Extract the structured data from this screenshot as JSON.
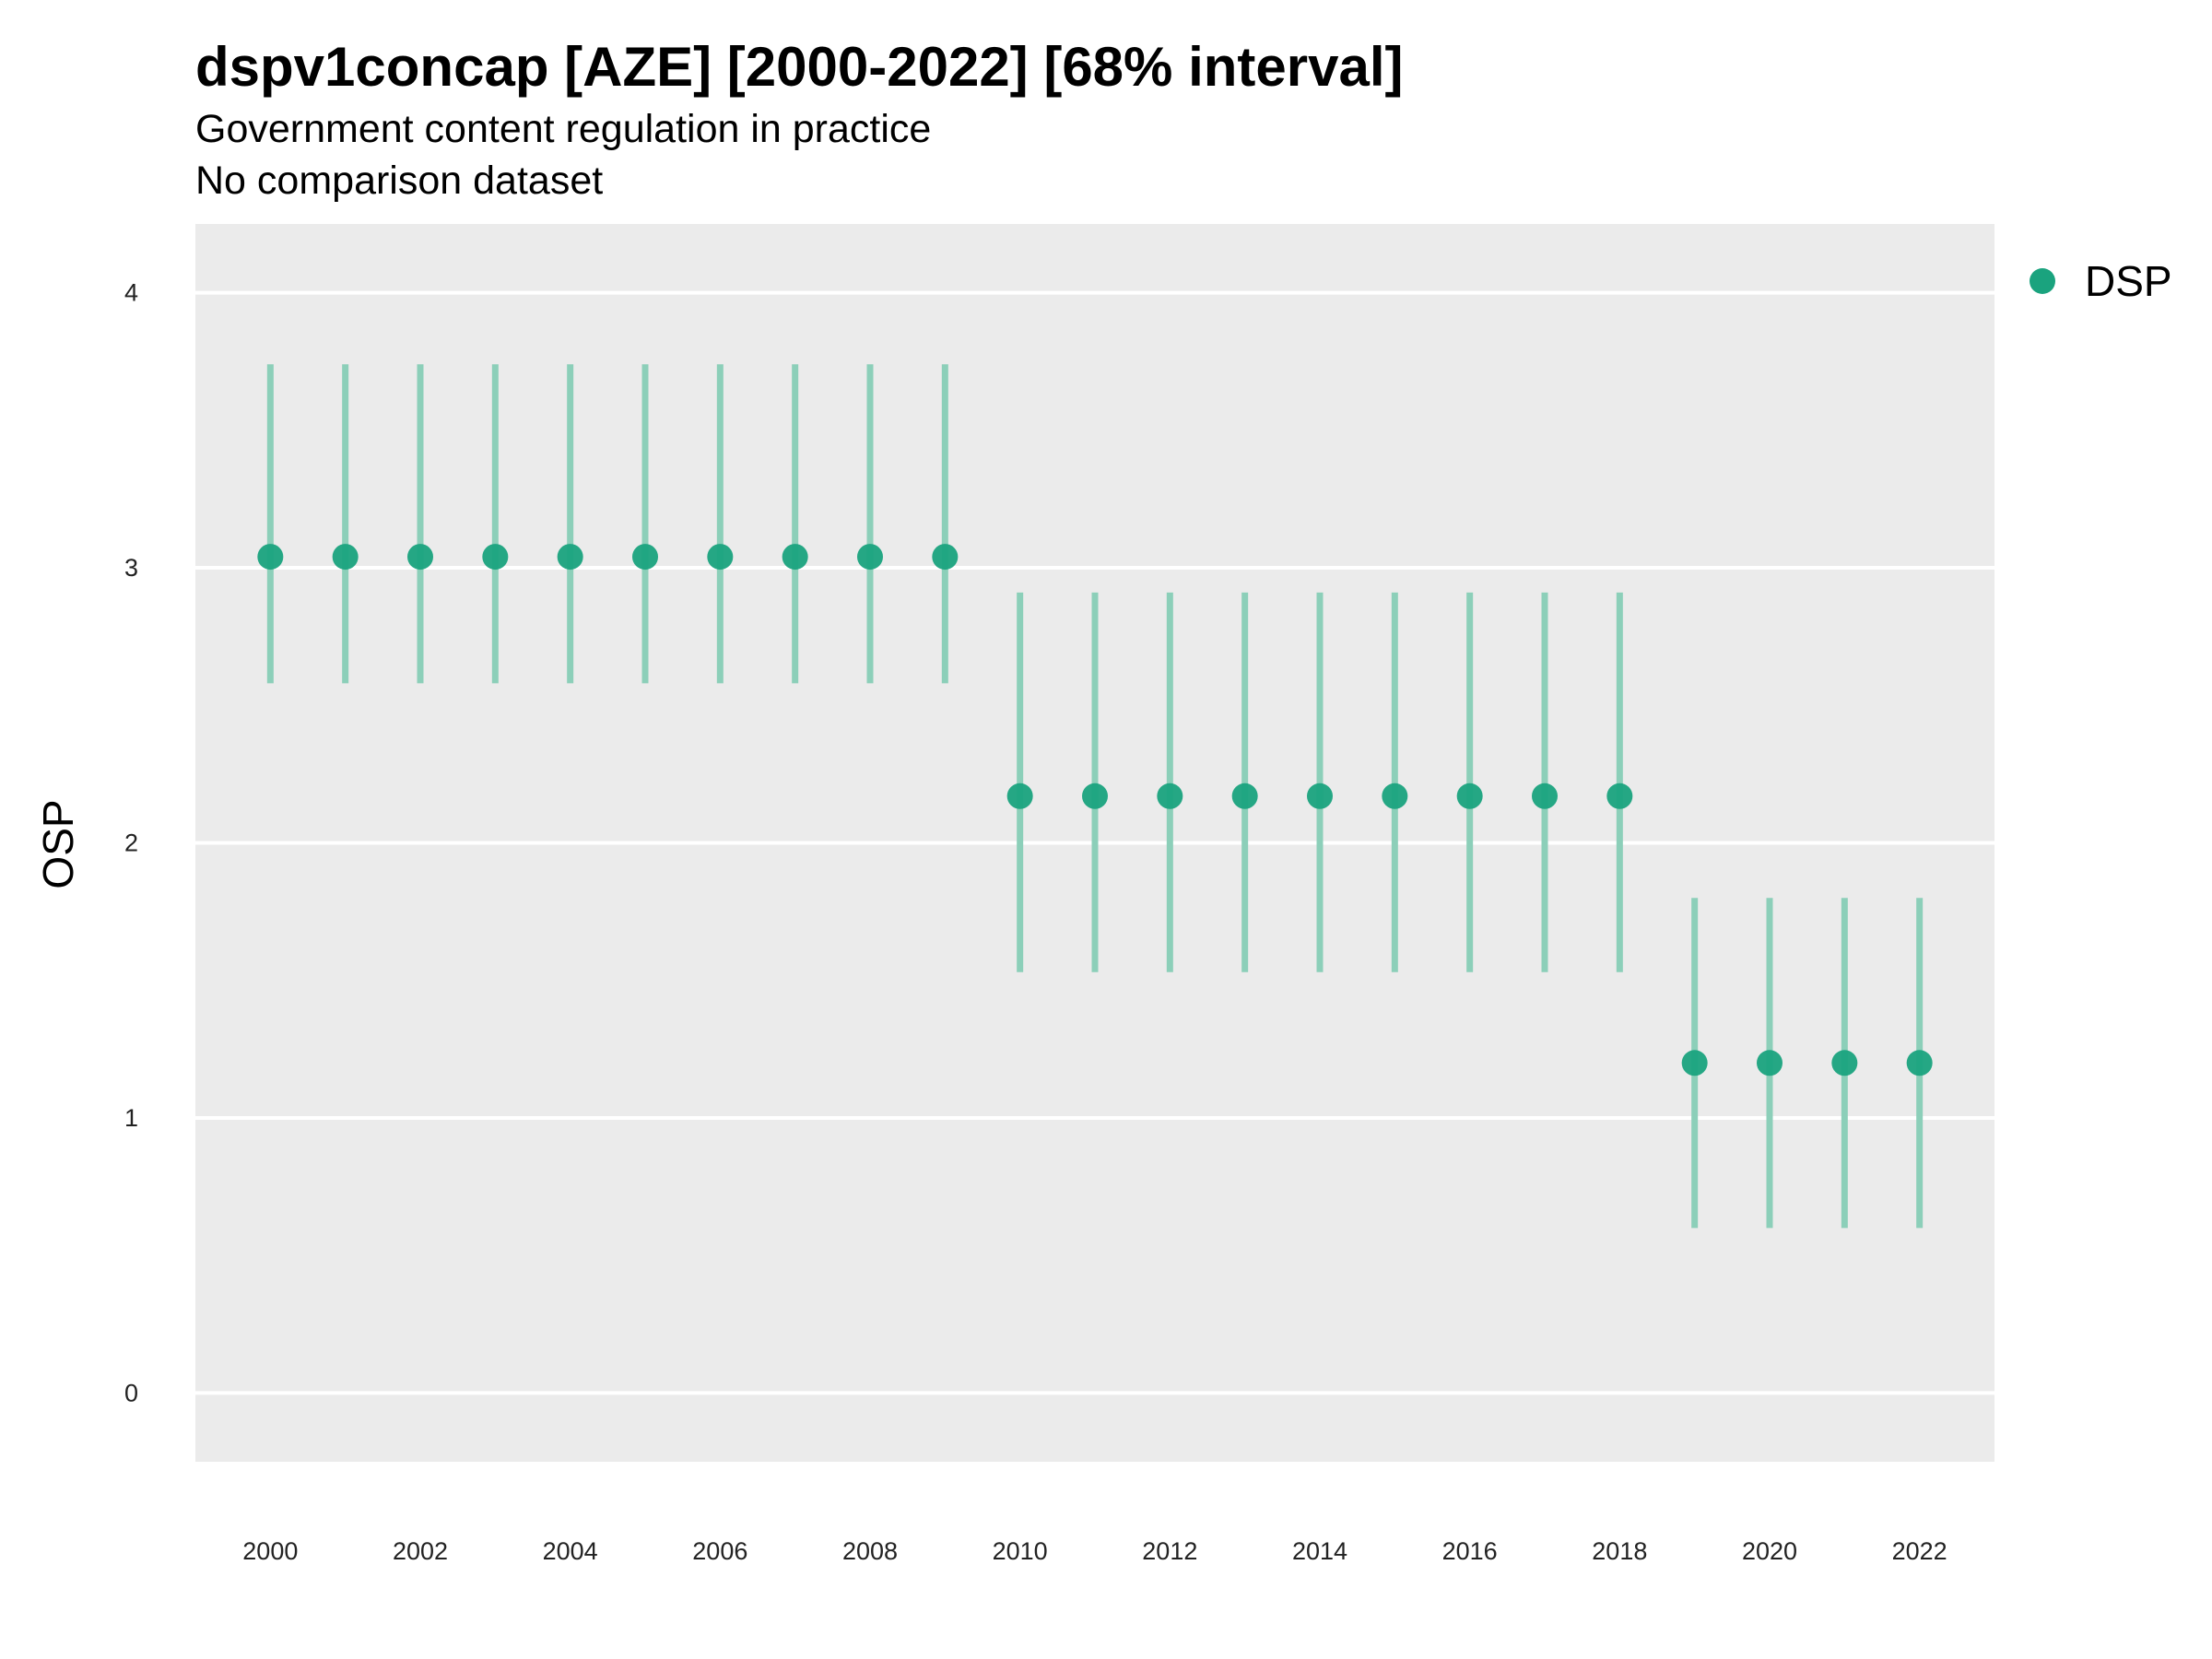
{
  "chart_data": {
    "type": "scatter",
    "title": "dspv1concap [AZE] [2000-2022] [68% interval]",
    "subtitle": "Government content regulation in practice",
    "caption": "No comparison dataset",
    "xlabel": "",
    "ylabel": "OSP",
    "xlim": [
      1999,
      2023
    ],
    "ylim": [
      -0.25,
      4.25
    ],
    "x_ticks": [
      2000,
      2002,
      2004,
      2006,
      2008,
      2010,
      2012,
      2014,
      2016,
      2018,
      2020,
      2022
    ],
    "y_ticks": [
      0,
      1,
      2,
      3,
      4
    ],
    "grid": true,
    "legend_position": "right",
    "series": [
      {
        "name": "DSP",
        "color": "#1aa37e",
        "interval_color": "#8ccfb9",
        "x": [
          2000,
          2001,
          2002,
          2003,
          2004,
          2005,
          2006,
          2007,
          2008,
          2009,
          2010,
          2011,
          2012,
          2013,
          2014,
          2015,
          2016,
          2017,
          2018,
          2019,
          2020,
          2021,
          2022
        ],
        "y": [
          3.04,
          3.04,
          3.04,
          3.04,
          3.04,
          3.04,
          3.04,
          3.04,
          3.04,
          3.04,
          2.17,
          2.17,
          2.17,
          2.17,
          2.17,
          2.17,
          2.17,
          2.17,
          2.17,
          1.2,
          1.2,
          1.2,
          1.2
        ],
        "lower": [
          2.58,
          2.58,
          2.58,
          2.58,
          2.58,
          2.58,
          2.58,
          2.58,
          2.58,
          2.58,
          1.53,
          1.53,
          1.53,
          1.53,
          1.53,
          1.53,
          1.53,
          1.53,
          1.53,
          0.6,
          0.6,
          0.6,
          0.6
        ],
        "upper": [
          3.74,
          3.74,
          3.74,
          3.74,
          3.74,
          3.74,
          3.74,
          3.74,
          3.74,
          3.74,
          2.91,
          2.91,
          2.91,
          2.91,
          2.91,
          2.91,
          2.91,
          2.91,
          2.91,
          1.8,
          1.8,
          1.8,
          1.8
        ]
      }
    ]
  }
}
